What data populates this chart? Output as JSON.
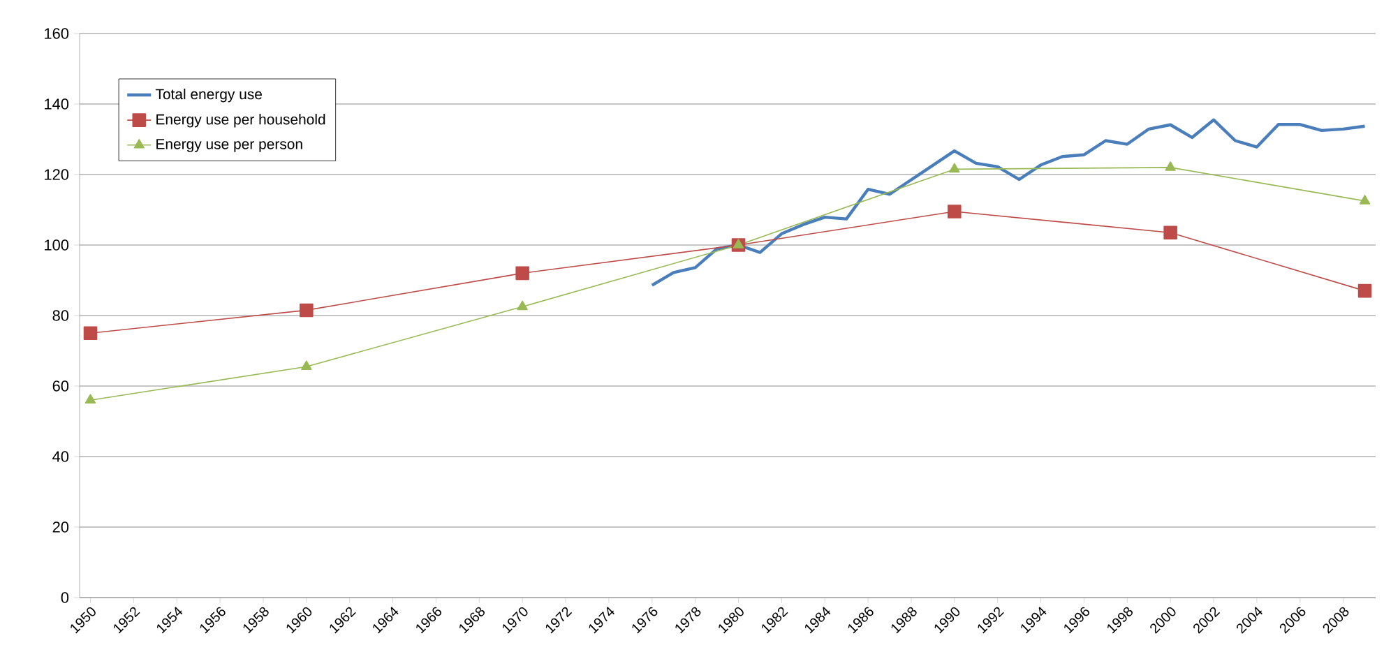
{
  "chart_data": {
    "type": "line",
    "xlim": [
      1949.5,
      2009.5
    ],
    "xticks": [
      1950,
      1952,
      1954,
      1956,
      1958,
      1960,
      1962,
      1964,
      1966,
      1968,
      1970,
      1972,
      1974,
      1976,
      1978,
      1980,
      1982,
      1984,
      1986,
      1988,
      1990,
      1992,
      1994,
      1996,
      1998,
      2000,
      2002,
      2004,
      2006,
      2008
    ],
    "ylim": [
      0,
      160
    ],
    "yticks": [
      0,
      20,
      40,
      60,
      80,
      100,
      120,
      140,
      160
    ],
    "grid": "y",
    "legend": "top left",
    "series": [
      {
        "name": "Total energy use",
        "color": "#4a7ebb",
        "marker": "none",
        "x": [
          1976,
          1977,
          1978,
          1979,
          1980,
          1981,
          1982,
          1983,
          1984,
          1985,
          1986,
          1987,
          1988,
          1989,
          1990,
          1991,
          1992,
          1993,
          1994,
          1995,
          1996,
          1997,
          1998,
          1999,
          2000,
          2001,
          2002,
          2003,
          2004,
          2005,
          2006,
          2007,
          2008,
          2009
        ],
        "values": [
          88.6,
          92.2,
          93.6,
          98.9,
          100,
          97.9,
          103.2,
          105.8,
          107.9,
          107.4,
          115.8,
          114.4,
          118.5,
          122.6,
          126.7,
          123.2,
          122.2,
          118.6,
          122.7,
          125.1,
          125.6,
          129.6,
          128.6,
          132.9,
          134.1,
          130.5,
          135.5,
          129.6,
          127.8,
          134.2,
          134.2,
          132.5,
          132.9,
          133.7
        ]
      },
      {
        "name": "Energy use per household",
        "color": "#be4b48",
        "marker": "square",
        "x": [
          1950,
          1960,
          1970,
          1980,
          1990,
          2000,
          2009
        ],
        "values": [
          75,
          81.5,
          92,
          100,
          109.5,
          103.5,
          87
        ]
      },
      {
        "name": "Energy use per person",
        "color": "#98b954",
        "marker": "triangle",
        "x": [
          1950,
          1960,
          1970,
          1980,
          1990,
          2000,
          2009
        ],
        "values": [
          56,
          65.5,
          82.5,
          100,
          121.5,
          122,
          112.5
        ]
      }
    ]
  }
}
